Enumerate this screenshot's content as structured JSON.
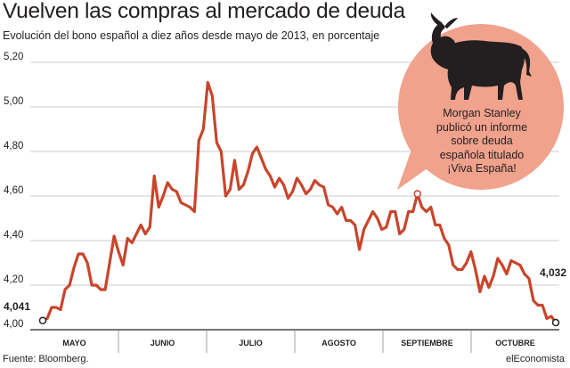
{
  "title": "Vuelven las compras al mercado de deuda",
  "subtitle": "Evolución del bono español a diez años desde mayo de 2013, en porcentaje",
  "source": "Fuente: Bloomberg.",
  "brand": "elEconomista",
  "annotation": {
    "text": "Morgan Stanley publicó un informe sobre deuda española titulado ¡Viva España!",
    "icon": "bull-icon",
    "bubble_color": "#f0a28c"
  },
  "colors": {
    "line": "#c8452b",
    "grid": "#bcbcbc",
    "axis": "#231f20"
  },
  "chart_data": {
    "type": "line",
    "title": "Vuelven las compras al mercado de deuda",
    "subtitle": "Evolución del bono español a diez años desde mayo de 2013, en porcentaje",
    "y_ticks": [
      "5,20",
      "5,00",
      "4,80",
      "4,60",
      "4,40",
      "4,20",
      "4,00"
    ],
    "ylim": [
      4.0,
      5.2
    ],
    "months": [
      "MAYO",
      "JUNIO",
      "JULIO",
      "AGOSTO",
      "SEPTIEMBRE",
      "OCTUBRE"
    ],
    "grid": "horizontal",
    "start_label": "4,041",
    "end_label": "4,032",
    "series": [
      {
        "values": [
          4.041,
          4.05,
          4.1,
          4.1,
          4.09,
          4.18,
          4.2,
          4.28,
          4.34,
          4.34,
          4.3,
          4.2,
          4.2,
          4.18,
          4.18,
          4.3,
          4.42,
          4.35,
          4.29,
          4.41,
          4.39,
          4.43,
          4.47,
          4.43,
          4.46,
          4.69,
          4.55,
          4.6,
          4.66,
          4.63,
          4.62,
          4.57,
          4.56,
          4.55,
          4.53,
          4.85,
          4.9,
          5.11,
          5.05,
          4.84,
          4.8,
          4.6,
          4.63,
          4.76,
          4.63,
          4.65,
          4.71,
          4.79,
          4.82,
          4.77,
          4.72,
          4.69,
          4.64,
          4.68,
          4.65,
          4.59,
          4.62,
          4.68,
          4.65,
          4.61,
          4.63,
          4.67,
          4.65,
          4.64,
          4.56,
          4.55,
          4.52,
          4.55,
          4.49,
          4.49,
          4.47,
          4.36,
          4.45,
          4.49,
          4.53,
          4.5,
          4.45,
          4.46,
          4.53,
          4.53,
          4.43,
          4.45,
          4.53,
          4.53,
          4.61,
          4.55,
          4.53,
          4.55,
          4.47,
          4.47,
          4.41,
          4.38,
          4.29,
          4.27,
          4.27,
          4.3,
          4.35,
          4.27,
          4.17,
          4.24,
          4.19,
          4.24,
          4.32,
          4.29,
          4.25,
          4.31,
          4.3,
          4.29,
          4.25,
          4.23,
          4.13,
          4.11,
          4.11,
          4.05,
          4.06,
          4.032
        ]
      }
    ]
  }
}
